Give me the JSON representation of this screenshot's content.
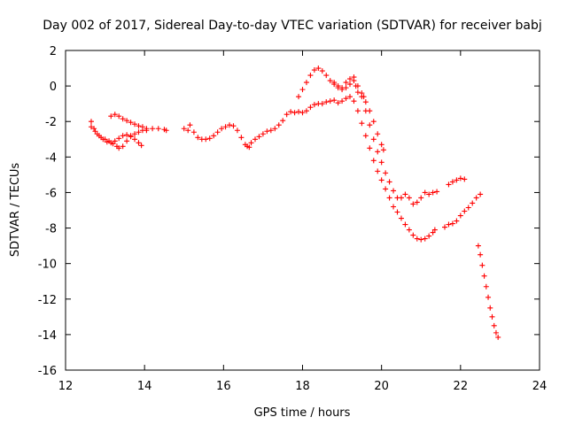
{
  "chart_data": {
    "type": "scatter",
    "title": "Day 002 of 2017, Sidereal Day-to-day VTEC variation (SDTVAR) for receiver babj",
    "xlabel": "GPS time / hours",
    "ylabel": "SDTVAR / TECUs",
    "xlim": [
      12,
      24
    ],
    "ylim": [
      -16,
      2
    ],
    "xticks": [
      12,
      14,
      16,
      18,
      20,
      22,
      24
    ],
    "yticks": [
      -16,
      -14,
      -12,
      -10,
      -8,
      -6,
      -4,
      -2,
      0,
      2
    ],
    "grid": false,
    "legend": "none",
    "marker": "plus",
    "color": "#ff0000",
    "series": [
      {
        "points": [
          [
            12.65,
            -2.0
          ],
          [
            12.72,
            -2.4
          ],
          [
            12.8,
            -2.7
          ],
          [
            12.9,
            -2.9
          ],
          [
            13.0,
            -3.0
          ],
          [
            13.1,
            -3.1
          ],
          [
            13.2,
            -3.25
          ],
          [
            13.3,
            -3.4
          ],
          [
            13.35,
            -3.5
          ],
          [
            13.45,
            -3.4
          ],
          [
            13.55,
            -3.1
          ],
          [
            13.65,
            -2.85
          ],
          [
            13.75,
            -2.7
          ],
          [
            13.85,
            -2.6
          ],
          [
            13.95,
            -2.5
          ],
          [
            14.05,
            -2.5
          ],
          [
            14.2,
            -2.4
          ],
          [
            14.35,
            -2.4
          ],
          [
            14.5,
            -2.45
          ],
          [
            14.55,
            -2.5
          ]
        ]
      },
      {
        "points": [
          [
            12.65,
            -2.3
          ],
          [
            12.75,
            -2.55
          ],
          [
            12.85,
            -2.8
          ],
          [
            12.95,
            -3.0
          ],
          [
            13.05,
            -3.15
          ],
          [
            13.15,
            -3.2
          ],
          [
            13.25,
            -3.1
          ],
          [
            13.35,
            -2.95
          ],
          [
            13.45,
            -2.8
          ],
          [
            13.55,
            -2.75
          ],
          [
            13.65,
            -2.8
          ],
          [
            13.75,
            -3.0
          ],
          [
            13.85,
            -3.2
          ],
          [
            13.92,
            -3.35
          ]
        ]
      },
      {
        "points": [
          [
            13.15,
            -1.7
          ],
          [
            13.25,
            -1.6
          ],
          [
            13.35,
            -1.7
          ],
          [
            13.45,
            -1.85
          ],
          [
            13.55,
            -1.95
          ],
          [
            13.65,
            -2.05
          ],
          [
            13.75,
            -2.15
          ],
          [
            13.85,
            -2.25
          ],
          [
            13.95,
            -2.3
          ],
          [
            14.05,
            -2.4
          ]
        ]
      },
      {
        "points": [
          [
            15.0,
            -2.4
          ],
          [
            15.1,
            -2.5
          ],
          [
            15.15,
            -2.2
          ],
          [
            15.25,
            -2.6
          ],
          [
            15.35,
            -2.9
          ],
          [
            15.45,
            -3.0
          ],
          [
            15.55,
            -3.0
          ],
          [
            15.65,
            -2.95
          ],
          [
            15.75,
            -2.8
          ],
          [
            15.85,
            -2.6
          ],
          [
            15.95,
            -2.4
          ],
          [
            16.05,
            -2.3
          ],
          [
            16.15,
            -2.2
          ],
          [
            16.25,
            -2.25
          ],
          [
            16.35,
            -2.5
          ],
          [
            16.45,
            -2.9
          ],
          [
            16.55,
            -3.3
          ],
          [
            16.65,
            -3.45
          ]
        ]
      },
      {
        "points": [
          [
            16.6,
            -3.4
          ],
          [
            16.7,
            -3.2
          ],
          [
            16.8,
            -3.0
          ],
          [
            16.9,
            -2.85
          ],
          [
            17.0,
            -2.7
          ],
          [
            17.1,
            -2.55
          ],
          [
            17.2,
            -2.5
          ],
          [
            17.3,
            -2.4
          ],
          [
            17.4,
            -2.2
          ],
          [
            17.5,
            -1.95
          ],
          [
            17.6,
            -1.6
          ],
          [
            17.7,
            -1.45
          ],
          [
            17.8,
            -1.5
          ],
          [
            17.9,
            -1.45
          ],
          [
            18.0,
            -1.5
          ],
          [
            18.1,
            -1.4
          ],
          [
            18.2,
            -1.2
          ],
          [
            18.3,
            -1.05
          ],
          [
            18.4,
            -1.0
          ],
          [
            18.5,
            -1.0
          ],
          [
            18.6,
            -0.9
          ],
          [
            18.7,
            -0.85
          ],
          [
            18.8,
            -0.8
          ],
          [
            18.9,
            -0.95
          ],
          [
            19.0,
            -0.85
          ],
          [
            19.1,
            -0.7
          ],
          [
            19.2,
            -0.6
          ],
          [
            19.3,
            -0.85
          ],
          [
            19.4,
            -1.4
          ],
          [
            19.5,
            -2.1
          ],
          [
            19.6,
            -2.8
          ],
          [
            19.7,
            -3.5
          ],
          [
            19.8,
            -4.2
          ],
          [
            19.9,
            -4.8
          ],
          [
            20.0,
            -5.3
          ],
          [
            20.1,
            -5.8
          ],
          [
            20.2,
            -6.3
          ],
          [
            20.3,
            -6.8
          ],
          [
            20.4,
            -7.1
          ],
          [
            20.5,
            -7.45
          ],
          [
            20.6,
            -7.8
          ],
          [
            20.7,
            -8.1
          ],
          [
            20.8,
            -8.4
          ],
          [
            20.9,
            -8.6
          ],
          [
            21.0,
            -8.65
          ],
          [
            21.1,
            -8.6
          ],
          [
            21.2,
            -8.45
          ],
          [
            21.3,
            -8.25
          ],
          [
            21.35,
            -8.1
          ]
        ]
      },
      {
        "points": [
          [
            17.9,
            -0.6
          ],
          [
            18.0,
            -0.2
          ],
          [
            18.1,
            0.2
          ],
          [
            18.2,
            0.6
          ],
          [
            18.3,
            0.9
          ],
          [
            18.4,
            1.0
          ],
          [
            18.5,
            0.85
          ],
          [
            18.6,
            0.6
          ],
          [
            18.7,
            0.3
          ],
          [
            18.8,
            0.1
          ],
          [
            18.9,
            -0.1
          ],
          [
            19.0,
            -0.2
          ],
          [
            19.1,
            -0.1
          ],
          [
            19.2,
            0.1
          ],
          [
            19.3,
            0.5
          ],
          [
            19.4,
            0.0
          ],
          [
            19.5,
            -0.6
          ],
          [
            19.6,
            -1.4
          ],
          [
            19.7,
            -2.2
          ],
          [
            19.8,
            -3.0
          ],
          [
            19.9,
            -3.7
          ],
          [
            20.0,
            -4.3
          ],
          [
            20.1,
            -4.9
          ],
          [
            20.2,
            -5.4
          ],
          [
            20.3,
            -5.9
          ],
          [
            20.4,
            -6.3
          ],
          [
            20.5,
            -6.3
          ],
          [
            20.6,
            -6.1
          ],
          [
            20.7,
            -6.3
          ],
          [
            20.8,
            -6.65
          ],
          [
            20.9,
            -6.55
          ],
          [
            21.0,
            -6.3
          ],
          [
            21.1,
            -6.0
          ],
          [
            21.2,
            -6.1
          ],
          [
            21.3,
            -6.0
          ],
          [
            21.4,
            -5.95
          ]
        ]
      },
      {
        "points": [
          [
            18.8,
            0.2
          ],
          [
            18.9,
            0.0
          ],
          [
            19.0,
            -0.1
          ],
          [
            19.1,
            0.2
          ],
          [
            19.2,
            0.4
          ],
          [
            19.3,
            0.3
          ],
          [
            19.35,
            0.0
          ],
          [
            19.4,
            -0.35
          ],
          [
            19.5,
            -0.4
          ],
          [
            19.55,
            -0.6
          ],
          [
            19.6,
            -0.9
          ],
          [
            19.7,
            -1.4
          ],
          [
            19.8,
            -2.0
          ],
          [
            19.9,
            -2.7
          ],
          [
            20.0,
            -3.3
          ],
          [
            20.05,
            -3.6
          ]
        ]
      },
      {
        "points": [
          [
            21.7,
            -5.55
          ],
          [
            21.8,
            -5.4
          ],
          [
            21.9,
            -5.3
          ],
          [
            22.0,
            -5.2
          ],
          [
            22.1,
            -5.25
          ]
        ]
      },
      {
        "points": [
          [
            21.6,
            -7.95
          ],
          [
            21.7,
            -7.8
          ],
          [
            21.8,
            -7.75
          ],
          [
            21.9,
            -7.6
          ],
          [
            22.0,
            -7.3
          ],
          [
            22.1,
            -7.05
          ],
          [
            22.2,
            -6.85
          ],
          [
            22.3,
            -6.6
          ],
          [
            22.4,
            -6.3
          ],
          [
            22.5,
            -6.1
          ]
        ]
      },
      {
        "points": [
          [
            22.45,
            -9.0
          ],
          [
            22.5,
            -9.5
          ],
          [
            22.55,
            -10.1
          ],
          [
            22.6,
            -10.7
          ],
          [
            22.65,
            -11.3
          ],
          [
            22.7,
            -11.9
          ],
          [
            22.75,
            -12.5
          ],
          [
            22.8,
            -13.0
          ],
          [
            22.85,
            -13.5
          ],
          [
            22.9,
            -13.9
          ],
          [
            22.95,
            -14.15
          ]
        ]
      }
    ]
  }
}
